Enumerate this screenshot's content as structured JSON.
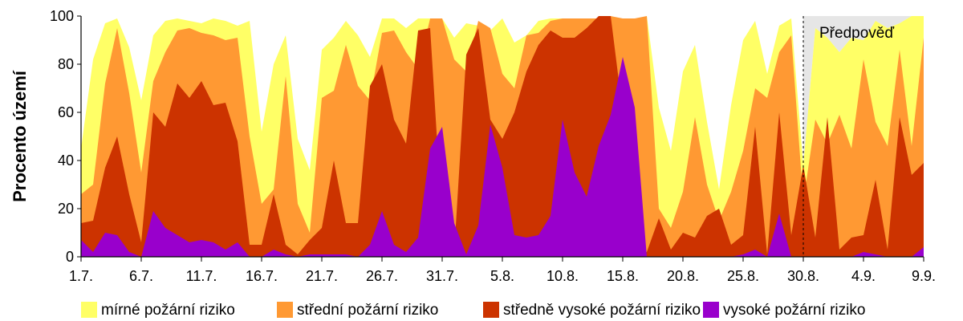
{
  "chart_data": {
    "type": "area",
    "stacked": true,
    "ylabel": "Procento území",
    "ylim": [
      0,
      100
    ],
    "yticks": [
      0,
      20,
      40,
      60,
      80,
      100
    ],
    "x_tick_labels": [
      "1.7.",
      "6.7.",
      "11.7.",
      "16.7.",
      "21.7.",
      "26.7.",
      "31.7.",
      "5.8.",
      "10.8.",
      "15.8.",
      "20.8.",
      "25.8.",
      "30.8.",
      "4.9.",
      "9.9."
    ],
    "x_tick_every": 5,
    "forecast_label": "Předpověď",
    "forecast_start_index": 60,
    "grid": false,
    "legend_position": "bottom",
    "cumulative_levels": [
      {
        "name": "mírné požární riziko",
        "color": "#FFFF66",
        "values": [
          45,
          82,
          97,
          99,
          87,
          65,
          92,
          98,
          99,
          98,
          97,
          99,
          98,
          96,
          98,
          52,
          80,
          92,
          49,
          36,
          86,
          91,
          98,
          92,
          83,
          99,
          99,
          95,
          99,
          99,
          99,
          91,
          97,
          96,
          94,
          99,
          89,
          92,
          98,
          99,
          99,
          99,
          99,
          97,
          98,
          99,
          98,
          100,
          62,
          44,
          77,
          88,
          56,
          28,
          63,
          90,
          98,
          76,
          96,
          99,
          38,
          95,
          91,
          85,
          91,
          90,
          98,
          95,
          97,
          100,
          100
        ]
      },
      {
        "name": "střední požární riziko",
        "color": "#FF9933",
        "values": [
          26,
          30,
          72,
          95,
          68,
          35,
          73,
          85,
          94,
          95,
          93,
          92,
          90,
          91,
          50,
          22,
          28,
          75,
          22,
          10,
          66,
          69,
          88,
          71,
          65,
          93,
          94,
          85,
          78,
          99,
          99,
          82,
          77,
          98,
          95,
          76,
          70,
          92,
          93,
          98,
          99,
          99,
          99,
          99,
          100,
          99,
          99,
          100,
          20,
          12,
          27,
          58,
          30,
          15,
          27,
          44,
          70,
          66,
          85,
          92,
          23,
          57,
          47,
          59,
          45,
          82,
          56,
          46,
          86,
          46,
          91
        ]
      },
      {
        "name": "středně vysoké požární riziko",
        "color": "#CC3300",
        "values": [
          14,
          15,
          37,
          50,
          26,
          6,
          60,
          54,
          72,
          66,
          73,
          63,
          64,
          48,
          5,
          5,
          26,
          5,
          1,
          7,
          12,
          40,
          14,
          14,
          71,
          80,
          57,
          47,
          94,
          95,
          14,
          2,
          84,
          95,
          57,
          49,
          60,
          77,
          88,
          94,
          91,
          91,
          95,
          100,
          100,
          60,
          1,
          2,
          16,
          3,
          10,
          8,
          17,
          20,
          5,
          9,
          54,
          1,
          60,
          9,
          38,
          8,
          58,
          3,
          8,
          9,
          32,
          3,
          58,
          34,
          39
        ]
      },
      {
        "name": "vysoké požární riziko",
        "color": "#9900CC",
        "values": [
          7,
          2,
          10,
          9,
          2,
          0,
          19,
          12,
          9,
          6,
          7,
          6,
          3,
          6,
          0,
          0,
          3,
          1,
          0,
          1,
          1,
          1,
          1,
          0,
          5,
          19,
          5,
          2,
          8,
          45,
          54,
          14,
          1,
          13,
          55,
          37,
          9,
          8,
          9,
          17,
          57,
          35,
          25,
          46,
          59,
          83,
          62,
          0,
          0,
          0,
          0,
          0,
          0,
          0,
          0,
          1,
          3,
          0,
          18,
          0,
          0,
          0,
          0,
          0,
          0,
          2,
          1,
          0,
          0,
          0,
          4
        ]
      }
    ],
    "forecast_shading_color": "#E6E6E6"
  },
  "legend": {
    "items": [
      {
        "label": "mírné požární riziko",
        "color": "#FFFF66"
      },
      {
        "label": "střední požární riziko",
        "color": "#FF9933"
      },
      {
        "label": "středně vysoké požární riziko",
        "color": "#CC3300"
      },
      {
        "label": "vysoké požární riziko",
        "color": "#9900CC"
      }
    ]
  }
}
